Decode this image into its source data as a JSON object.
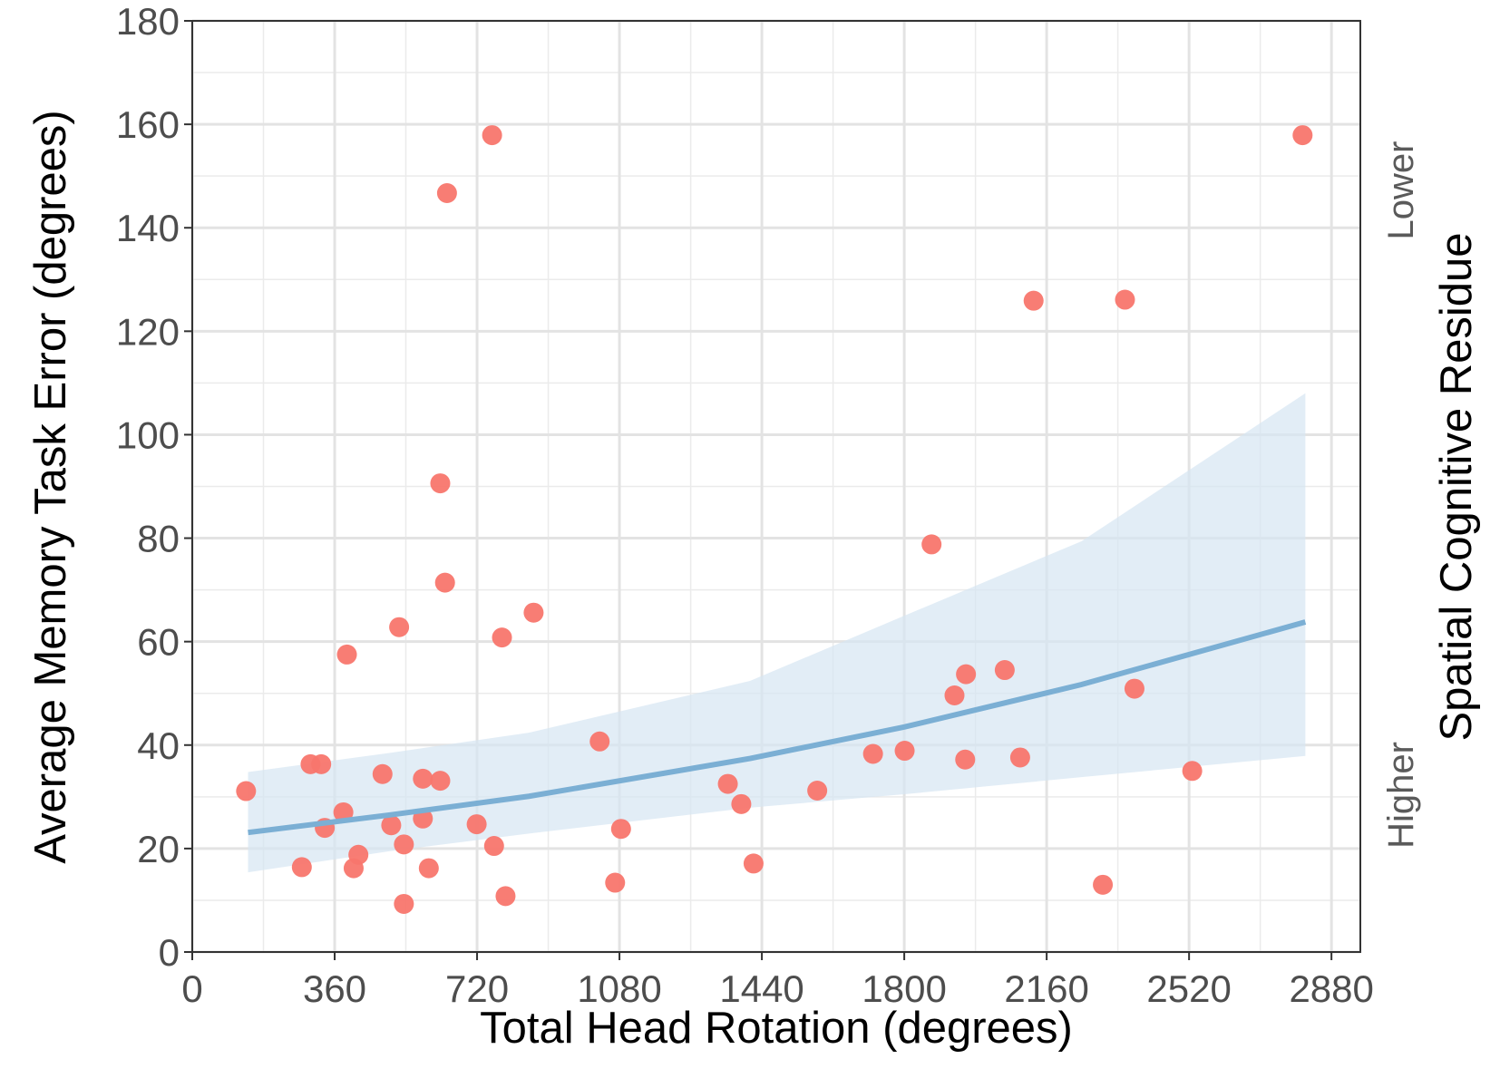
{
  "chart_data": {
    "type": "scatter",
    "x_label": "Total Head Rotation (degrees)",
    "y_label": "Average Memory Task Error (degrees)",
    "right_label": "Spatial Cognitive Residue",
    "right_label_top": "Lower",
    "right_label_bottom": "Higher",
    "xlim": [
      0,
      2953
    ],
    "ylim": [
      0,
      180
    ],
    "xticks": [
      0,
      360,
      720,
      1080,
      1440,
      1800,
      2160,
      2520,
      2880
    ],
    "yticks": [
      0,
      20,
      40,
      60,
      80,
      100,
      120,
      140,
      160,
      180
    ],
    "grid": true,
    "series": [
      {
        "color": "#f8766d",
        "x": [
          136,
          277,
          299,
          326,
          335,
          382,
          391,
          408,
          420,
          481,
          503,
          523,
          535,
          535,
          583,
          583,
          598,
          627,
          627,
          639,
          644,
          719,
          758,
          763,
          783,
          792,
          863,
          1030,
          1069,
          1084,
          1354,
          1388,
          1419,
          1580,
          1721,
          1801,
          1869,
          1927,
          1954,
          1956,
          2054,
          2093,
          2127,
          2302,
          2358,
          2382,
          2528,
          2807
        ],
        "values": [
          31.1,
          16.4,
          36.3,
          36.3,
          24.0,
          27.0,
          57.5,
          16.2,
          18.8,
          34.4,
          24.5,
          62.8,
          20.8,
          9.3,
          33.5,
          25.8,
          16.2,
          33.1,
          90.6,
          71.4,
          146.7,
          24.7,
          157.9,
          20.5,
          60.8,
          10.8,
          65.6,
          40.7,
          13.4,
          23.8,
          32.5,
          28.6,
          17.1,
          31.2,
          38.3,
          38.9,
          78.8,
          49.6,
          37.2,
          53.7,
          54.5,
          37.6,
          125.9,
          13.0,
          126.1,
          50.9,
          35.0,
          157.9
        ]
      }
    ],
    "trend": {
      "color": "#7bafd4",
      "band_color": "#d6e6f2",
      "x": [
        141,
        500,
        851,
        1410,
        1800,
        2248,
        2814
      ],
      "values": [
        23.1,
        26.5,
        30.1,
        37.4,
        43.5,
        51.7,
        63.8
      ],
      "upper": [
        34.8,
        38.5,
        42.4,
        52.4,
        65.0,
        79.4,
        108.0
      ],
      "lower": [
        15.4,
        19.5,
        22.9,
        27.9,
        30.5,
        33.8,
        37.9
      ]
    }
  }
}
